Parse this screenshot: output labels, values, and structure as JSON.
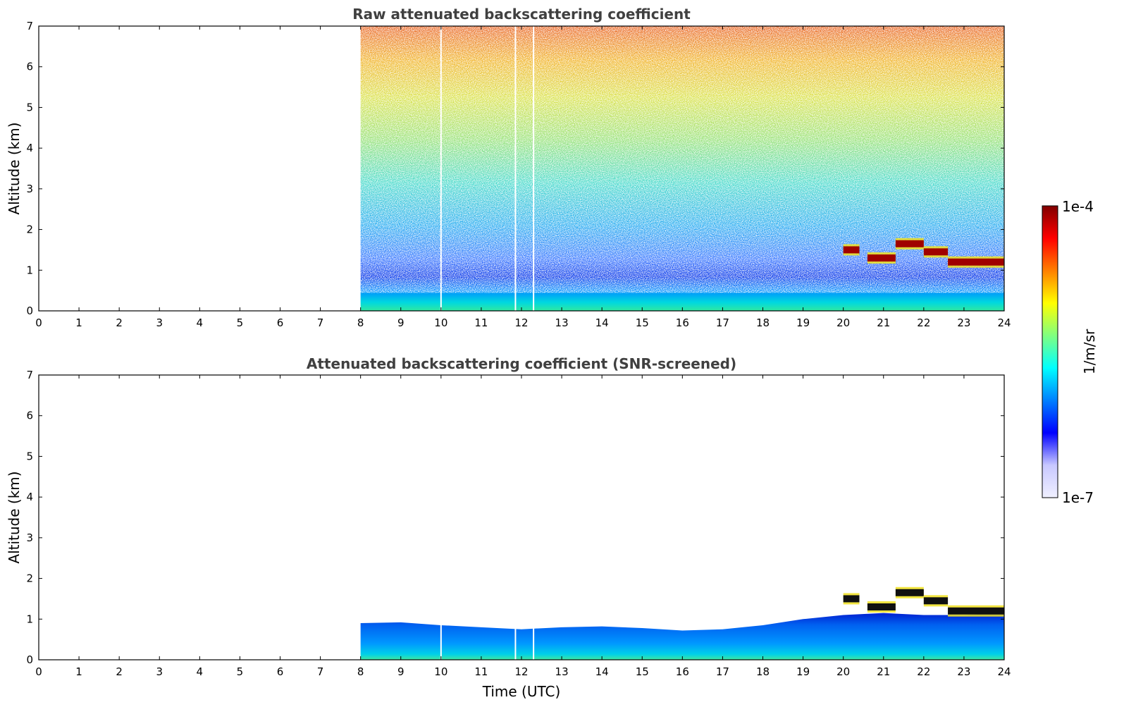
{
  "chart_data": [
    {
      "type": "heatmap",
      "title": "Raw attenuated backscattering coefficient",
      "xlabel": "",
      "ylabel": "Altitude (km)",
      "xlim": [
        0,
        24
      ],
      "ylim": [
        0,
        7
      ],
      "x_ticks": [
        0,
        1,
        2,
        3,
        4,
        5,
        6,
        7,
        8,
        9,
        10,
        11,
        12,
        13,
        14,
        15,
        16,
        17,
        18,
        19,
        20,
        21,
        22,
        23,
        24
      ],
      "y_ticks": [
        0,
        1,
        2,
        3,
        4,
        5,
        6,
        7
      ],
      "data_start_hour": 8,
      "screened": false,
      "gap_lines_hours": [
        10.0,
        11.85,
        12.3
      ],
      "cloud_layers": [
        {
          "x_start": 20.0,
          "x_end": 20.4,
          "altitude_km": 1.5
        },
        {
          "x_start": 20.6,
          "x_end": 21.3,
          "altitude_km": 1.3
        },
        {
          "x_start": 21.3,
          "x_end": 22.0,
          "altitude_km": 1.65
        },
        {
          "x_start": 22.0,
          "x_end": 22.6,
          "altitude_km": 1.45
        },
        {
          "x_start": 22.6,
          "x_end": 24.0,
          "altitude_km": 1.2
        }
      ]
    },
    {
      "type": "heatmap",
      "title": "Attenuated backscattering coefficient (SNR-screened)",
      "xlabel": "Time (UTC)",
      "ylabel": "Altitude (km)",
      "xlim": [
        0,
        24
      ],
      "ylim": [
        0,
        7
      ],
      "x_ticks": [
        0,
        1,
        2,
        3,
        4,
        5,
        6,
        7,
        8,
        9,
        10,
        11,
        12,
        13,
        14,
        15,
        16,
        17,
        18,
        19,
        20,
        21,
        22,
        23,
        24
      ],
      "y_ticks": [
        0,
        1,
        2,
        3,
        4,
        5,
        6,
        7
      ],
      "data_start_hour": 8,
      "screened": true,
      "gap_lines_hours": [
        10.0,
        11.85,
        12.3
      ],
      "boundary_layer_top_km": [
        [
          8,
          0.9
        ],
        [
          9,
          0.92
        ],
        [
          10,
          0.85
        ],
        [
          11,
          0.8
        ],
        [
          12,
          0.75
        ],
        [
          13,
          0.8
        ],
        [
          14,
          0.82
        ],
        [
          15,
          0.78
        ],
        [
          16,
          0.72
        ],
        [
          17,
          0.75
        ],
        [
          18,
          0.85
        ],
        [
          19,
          1.0
        ],
        [
          20,
          1.1
        ],
        [
          21,
          1.15
        ],
        [
          22,
          1.1
        ],
        [
          23,
          1.1
        ],
        [
          24,
          1.15
        ]
      ],
      "cloud_layers": [
        {
          "x_start": 20.0,
          "x_end": 20.4,
          "altitude_km": 1.5
        },
        {
          "x_start": 20.6,
          "x_end": 21.3,
          "altitude_km": 1.3
        },
        {
          "x_start": 21.3,
          "x_end": 22.0,
          "altitude_km": 1.65
        },
        {
          "x_start": 22.0,
          "x_end": 22.6,
          "altitude_km": 1.45
        },
        {
          "x_start": 22.6,
          "x_end": 24.0,
          "altitude_km": 1.2
        }
      ]
    }
  ],
  "colorbar": {
    "max_label": "1e-4",
    "min_label": "1e-7",
    "unit_label": "1/m/sr",
    "colormap": "jet",
    "colors": [
      "#f0f0ff",
      "#c8c8ff",
      "#0000ff",
      "#0080ff",
      "#00ffff",
      "#80ff80",
      "#ffff00",
      "#ff8000",
      "#ff0000",
      "#800000"
    ]
  }
}
